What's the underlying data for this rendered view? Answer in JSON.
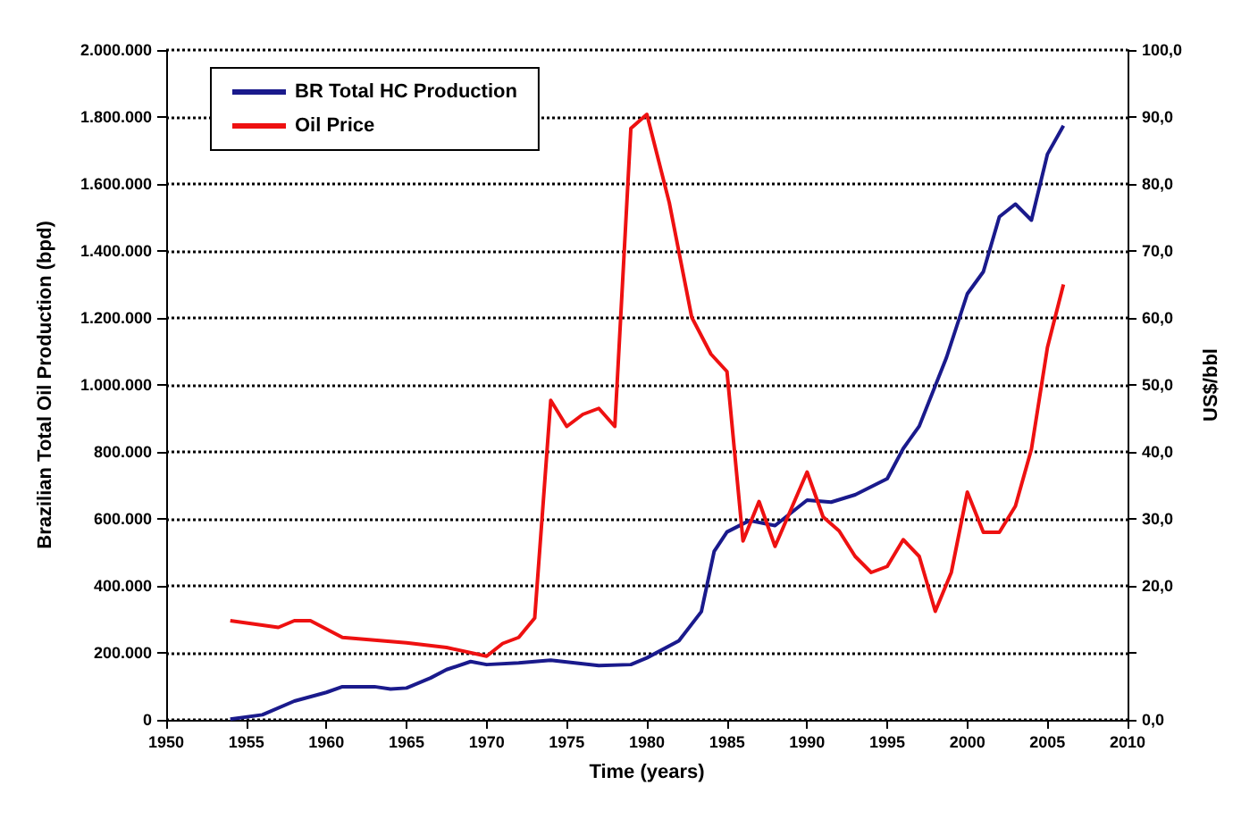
{
  "chart_data": {
    "type": "line",
    "xlabel": "Time (years)",
    "ylabel": "Brazilian Total Oil Production (bpd)",
    "y2label": "US$/bbl",
    "xlim": [
      1950,
      2010
    ],
    "xticks": [
      1950,
      1955,
      1960,
      1965,
      1970,
      1975,
      1980,
      1985,
      1990,
      1995,
      2000,
      2005,
      2010
    ],
    "ylim": [
      0,
      2000000
    ],
    "yticks": [
      {
        "value": 0,
        "label": "0"
      },
      {
        "value": 200000,
        "label": "200.000"
      },
      {
        "value": 400000,
        "label": "400.000"
      },
      {
        "value": 600000,
        "label": "600.000"
      },
      {
        "value": 800000,
        "label": "800.000"
      },
      {
        "value": 1000000,
        "label": "1.000.000"
      },
      {
        "value": 1200000,
        "label": "1.200.000"
      },
      {
        "value": 1400000,
        "label": "1.400.000"
      },
      {
        "value": 1600000,
        "label": "1.600.000"
      },
      {
        "value": 1800000,
        "label": "1.800.000"
      },
      {
        "value": 2000000,
        "label": "2.000.000"
      }
    ],
    "y2lim": [
      0,
      100
    ],
    "y2ticks": [
      {
        "value": 0,
        "label": "0,0"
      },
      {
        "value": 10,
        "label": null
      },
      {
        "value": 20,
        "label": "20,0"
      },
      {
        "value": 30,
        "label": "30,0"
      },
      {
        "value": 40,
        "label": "40,0"
      },
      {
        "value": 50,
        "label": "50,0"
      },
      {
        "value": 60,
        "label": "60,0"
      },
      {
        "value": 70,
        "label": "70,0"
      },
      {
        "value": 80,
        "label": "80,0"
      },
      {
        "value": 90,
        "label": "90,0"
      },
      {
        "value": 100,
        "label": "100,0"
      }
    ],
    "grid": "y",
    "legend": "top left",
    "marker": "none",
    "line_style": "solid",
    "series": [
      {
        "name": "BR Total HC Production",
        "color": "#1a1a8c",
        "x": [
          1954,
          1956,
          1958,
          1960,
          1961,
          1963,
          1964,
          1965,
          1966.5,
          1967.5,
          1969,
          1970,
          1972,
          1974,
          1977,
          1979,
          1980,
          1982,
          1983.4,
          1984.2,
          1985,
          1986.4,
          1988,
          1990,
          1991.5,
          1993,
          1995,
          1996,
          1997,
          1998.7,
          2000,
          2001,
          2002,
          2003,
          2004,
          2005,
          2006
        ],
        "values": [
          2000,
          15000,
          56000,
          82000,
          99000,
          99000,
          92000,
          95000,
          125000,
          150000,
          174000,
          165000,
          170000,
          178000,
          162000,
          165000,
          185000,
          236000,
          323000,
          503000,
          561000,
          595000,
          580000,
          656000,
          650000,
          672000,
          720000,
          810000,
          877000,
          1082000,
          1272000,
          1338000,
          1502000,
          1540000,
          1492000,
          1689000,
          1774000
        ]
      },
      {
        "name": "Oil Price",
        "color": "#ee1111",
        "axis": "y2",
        "x": [
          1954,
          1957,
          1958,
          1959,
          1961,
          1965,
          1967.5,
          1970,
          1971,
          1972,
          1973,
          1974,
          1975,
          1976,
          1977,
          1978,
          1979,
          1980,
          1981.4,
          1982.8,
          1984,
          1985,
          1986,
          1987,
          1988,
          1990,
          1991,
          1992,
          1993,
          1994,
          1995,
          1996,
          1997,
          1998,
          1999,
          2000,
          2001,
          2002,
          2003,
          2004,
          2005,
          2006
        ],
        "values": [
          14.8,
          13.8,
          14.8,
          14.8,
          12.3,
          11.5,
          10.8,
          9.5,
          11.4,
          12.3,
          15.2,
          47.7,
          43.8,
          45.6,
          46.5,
          43.8,
          88.3,
          90.4,
          77.2,
          60.1,
          54.6,
          52,
          26.7,
          32.6,
          25.9,
          37,
          30.3,
          28.2,
          24.4,
          22,
          22.9,
          26.9,
          24.4,
          16.2,
          22,
          34,
          28,
          28,
          31.9,
          40.4,
          55.6,
          65
        ]
      }
    ]
  }
}
